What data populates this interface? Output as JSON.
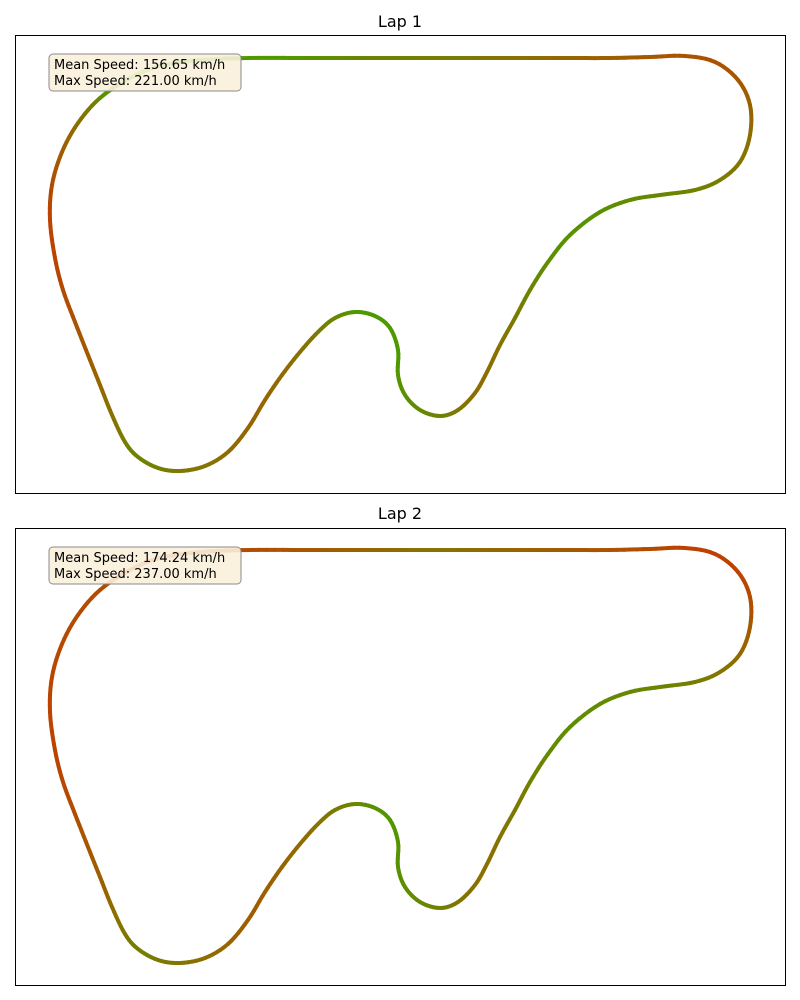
{
  "chart_data": [
    {
      "type": "line",
      "title": "Lap 1",
      "stats": [
        "Mean Speed: 156.65 km/h",
        "Max Speed: 221.00 km/h"
      ],
      "track_speed_colors": [
        {
          "ratio": 0.1,
          "color": "#bf4000"
        },
        {
          "ratio": 0.45,
          "color": "#8a7000"
        },
        {
          "ratio": 0.78,
          "color": "#4c9a00"
        }
      ],
      "speed_seq": [
        0.55,
        0.48,
        0.4,
        0.33,
        0.28,
        0.24,
        0.22,
        0.24,
        0.3,
        0.38,
        0.45,
        0.5,
        0.55,
        0.58,
        0.62,
        0.66,
        0.7,
        0.72,
        0.7,
        0.64,
        0.56,
        0.5,
        0.45,
        0.42,
        0.45,
        0.52,
        0.6,
        0.66,
        0.7,
        0.74,
        0.78,
        0.82,
        0.86,
        0.82,
        0.7,
        0.58,
        0.5,
        0.45,
        0.4,
        0.38,
        0.38,
        0.42,
        0.48,
        0.52,
        0.56,
        0.6,
        0.58,
        0.5,
        0.42,
        0.34,
        0.28,
        0.22,
        0.16,
        0.12,
        0.12,
        0.2,
        0.3,
        0.42,
        0.56,
        0.95,
        0.98,
        0.96,
        0.9,
        0.8,
        0.7,
        0.62,
        0.58,
        0.56
      ]
    },
    {
      "type": "line",
      "title": "Lap 2",
      "stats": [
        "Mean Speed: 174.24 km/h",
        "Max Speed: 237.00 km/h"
      ],
      "track_speed_colors": [
        {
          "ratio": 0.1,
          "color": "#bf4000"
        },
        {
          "ratio": 0.45,
          "color": "#8a7000"
        },
        {
          "ratio": 0.78,
          "color": "#4c9a00"
        }
      ],
      "speed_seq": [
        0.45,
        0.38,
        0.3,
        0.24,
        0.18,
        0.14,
        0.1,
        0.1,
        0.14,
        0.22,
        0.32,
        0.42,
        0.5,
        0.56,
        0.6,
        0.64,
        0.66,
        0.68,
        0.66,
        0.6,
        0.54,
        0.5,
        0.46,
        0.44,
        0.46,
        0.52,
        0.58,
        0.64,
        0.68,
        0.72,
        0.74,
        0.76,
        0.74,
        0.66,
        0.58,
        0.5,
        0.44,
        0.4,
        0.36,
        0.32,
        0.32,
        0.36,
        0.42,
        0.48,
        0.52,
        0.56,
        0.54,
        0.46,
        0.38,
        0.3,
        0.24,
        0.18,
        0.14,
        0.12,
        0.12,
        0.14,
        0.16,
        0.18,
        0.18,
        0.16,
        0.16,
        0.16,
        0.18,
        0.22,
        0.28,
        0.36,
        0.44,
        0.48
      ]
    }
  ]
}
